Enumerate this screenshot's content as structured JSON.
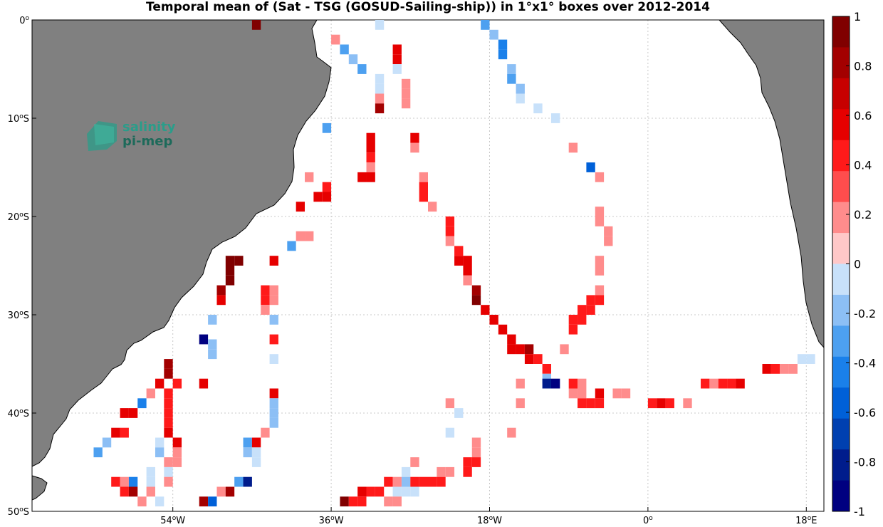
{
  "title": "Temporal mean of (Sat - TSG (GOSUD-Sailing-ship)) in 1°x1° boxes over 2012-2014",
  "logo_text": [
    "salinity",
    "pi-mep"
  ],
  "colors": {
    "land": "#808080",
    "ocean": "#ffffff",
    "logo": "#2a9d8a"
  },
  "chart_data": {
    "type": "heatmap",
    "title": "Temporal mean of (Sat - TSG (GOSUD-Sailing-ship)) in 1°x1° boxes over 2012-2014",
    "cell_size_deg": 1,
    "xlim": [
      -70,
      20
    ],
    "ylim": [
      -50,
      0
    ],
    "x_ticks": [
      {
        "value": -54,
        "deg": "54",
        "hem": "W"
      },
      {
        "value": -36,
        "deg": "36",
        "hem": "W"
      },
      {
        "value": -18,
        "deg": "18",
        "hem": "W"
      },
      {
        "value": 0,
        "deg": "0",
        "hem": ""
      },
      {
        "value": 18,
        "deg": "18",
        "hem": "E"
      }
    ],
    "y_ticks": [
      {
        "value": 0,
        "deg": "0",
        "hem": ""
      },
      {
        "value": -10,
        "deg": "10",
        "hem": "S"
      },
      {
        "value": -20,
        "deg": "20",
        "hem": "S"
      },
      {
        "value": -30,
        "deg": "30",
        "hem": "S"
      },
      {
        "value": -40,
        "deg": "40",
        "hem": "S"
      },
      {
        "value": -50,
        "deg": "50",
        "hem": "S"
      }
    ],
    "grid": true,
    "colorbar": {
      "range": [
        -1,
        1
      ],
      "levels": 16,
      "ticks": [
        "1",
        "0.8",
        "0.6",
        "0.4",
        "0.2",
        "0",
        "-0.2",
        "-0.4",
        "-0.6",
        "-0.8",
        "-1"
      ],
      "colors": [
        "#800000",
        "#a30000",
        "#c70000",
        "#e60000",
        "#ff1a1a",
        "#ff4d4d",
        "#ff8c8c",
        "#ffc8c8",
        "#c8e1fa",
        "#8cbff5",
        "#4da0f0",
        "#1a80ea",
        "#0060d8",
        "#0040b0",
        "#001c8c",
        "#000080"
      ]
    },
    "cells": [
      [
        -44.5,
        -0.5,
        1.0
      ],
      [
        -30.5,
        -0.5,
        -0.1
      ],
      [
        -18.5,
        -0.5,
        -0.3
      ],
      [
        -35.5,
        -2.0,
        0.2
      ],
      [
        -17.5,
        -1.5,
        -0.2
      ],
      [
        -34.5,
        -3.0,
        -0.3
      ],
      [
        -28.5,
        -3.0,
        0.6
      ],
      [
        -16.5,
        -2.5,
        -0.4
      ],
      [
        -16.5,
        -3.5,
        -0.4
      ],
      [
        -28.5,
        -4.0,
        0.6
      ],
      [
        -33.5,
        -4.0,
        -0.2
      ],
      [
        -32.5,
        -5.0,
        -0.3
      ],
      [
        -28.5,
        -5.0,
        -0.1
      ],
      [
        -15.5,
        -5.0,
        -0.2
      ],
      [
        -15.5,
        -6.0,
        -0.3
      ],
      [
        -30.5,
        -6.0,
        -0.1
      ],
      [
        -30.5,
        -7.0,
        -0.1
      ],
      [
        -27.5,
        -6.5,
        0.2
      ],
      [
        -14.5,
        -7.0,
        -0.2
      ],
      [
        -14.5,
        -8.0,
        -0.1
      ],
      [
        -27.5,
        -7.5,
        0.2
      ],
      [
        -27.5,
        -8.5,
        0.2
      ],
      [
        -30.5,
        -8.0,
        0.2
      ],
      [
        -30.5,
        -9.0,
        0.8
      ],
      [
        -12.5,
        -9.0,
        -0.1
      ],
      [
        -10.5,
        -10.0,
        -0.1
      ],
      [
        -36.5,
        -11.0,
        -0.3
      ],
      [
        -31.5,
        -12.0,
        0.6
      ],
      [
        -26.5,
        -12.0,
        0.6
      ],
      [
        -31.5,
        -13.0,
        0.6
      ],
      [
        -26.5,
        -13.0,
        0.2
      ],
      [
        -31.5,
        -14.0,
        0.4
      ],
      [
        -31.5,
        -15.0,
        0.2
      ],
      [
        -8.5,
        -13.0,
        0.2
      ],
      [
        -6.5,
        -15.0,
        -0.6
      ],
      [
        -32.5,
        -16.0,
        0.6
      ],
      [
        -31.5,
        -16.0,
        0.6
      ],
      [
        -25.5,
        -16.0,
        0.2
      ],
      [
        -5.5,
        -16.0,
        0.2
      ],
      [
        -38.5,
        -16.0,
        0.2
      ],
      [
        -25.5,
        -17.0,
        0.4
      ],
      [
        -36.5,
        -17.0,
        0.4
      ],
      [
        -37.5,
        -18.0,
        0.6
      ],
      [
        -36.5,
        -18.0,
        0.6
      ],
      [
        -25.5,
        -18.0,
        0.4
      ],
      [
        -24.5,
        -19.0,
        0.2
      ],
      [
        -39.5,
        -19.0,
        0.6
      ],
      [
        -5.5,
        -19.5,
        0.2
      ],
      [
        -5.5,
        -20.5,
        0.2
      ],
      [
        -22.5,
        -20.5,
        0.4
      ],
      [
        -22.5,
        -21.5,
        0.4
      ],
      [
        -4.5,
        -21.5,
        0.2
      ],
      [
        -4.5,
        -22.5,
        0.2
      ],
      [
        -38.5,
        -22.0,
        0.2
      ],
      [
        -39.5,
        -22.0,
        0.2
      ],
      [
        -22.5,
        -22.5,
        0.2
      ],
      [
        -40.5,
        -23.0,
        -0.3
      ],
      [
        -21.5,
        -23.5,
        0.4
      ],
      [
        -21.5,
        -24.5,
        0.6
      ],
      [
        -47.5,
        -24.5,
        1.0
      ],
      [
        -46.5,
        -24.5,
        1.0
      ],
      [
        -20.5,
        -24.5,
        0.6
      ],
      [
        -47.5,
        -25.5,
        1.0
      ],
      [
        -20.5,
        -25.5,
        0.6
      ],
      [
        -47.5,
        -26.5,
        1.0
      ],
      [
        -20.5,
        -26.5,
        0.2
      ],
      [
        -5.5,
        -24.5,
        0.2
      ],
      [
        -5.5,
        -25.5,
        0.2
      ],
      [
        -42.5,
        -24.5,
        0.6
      ],
      [
        -5.5,
        -27.5,
        0.2
      ],
      [
        -48.5,
        -27.5,
        0.8
      ],
      [
        -43.5,
        -27.5,
        0.4
      ],
      [
        -42.5,
        -27.5,
        0.2
      ],
      [
        -19.5,
        -27.5,
        0.8
      ],
      [
        -48.5,
        -28.5,
        0.6
      ],
      [
        -43.5,
        -28.5,
        0.4
      ],
      [
        -42.5,
        -28.5,
        0.2
      ],
      [
        -19.5,
        -28.5,
        1.0
      ],
      [
        -5.5,
        -28.5,
        0.4
      ],
      [
        -6.5,
        -28.5,
        0.4
      ],
      [
        -18.5,
        -29.5,
        0.6
      ],
      [
        -43.5,
        -29.5,
        0.2
      ],
      [
        -6.5,
        -29.5,
        0.4
      ],
      [
        -7.5,
        -29.5,
        0.4
      ],
      [
        -17.5,
        -30.5,
        0.6
      ],
      [
        -42.5,
        -30.5,
        -0.2
      ],
      [
        -49.5,
        -30.5,
        -0.2
      ],
      [
        -7.5,
        -30.5,
        0.4
      ],
      [
        -8.5,
        -30.5,
        0.4
      ],
      [
        -16.5,
        -31.5,
        0.6
      ],
      [
        -8.5,
        -31.5,
        0.4
      ],
      [
        -15.5,
        -32.5,
        0.6
      ],
      [
        -42.5,
        -32.5,
        0.4
      ],
      [
        -50.5,
        -32.5,
        -1.0
      ],
      [
        -49.5,
        -33.0,
        -0.2
      ],
      [
        -15.5,
        -33.5,
        0.6
      ],
      [
        -14.5,
        -33.5,
        0.6
      ],
      [
        -13.5,
        -33.5,
        0.8
      ],
      [
        -9.5,
        -33.5,
        0.2
      ],
      [
        -49.5,
        -34.0,
        -0.2
      ],
      [
        -13.5,
        -34.5,
        0.6
      ],
      [
        -12.5,
        -34.5,
        0.4
      ],
      [
        -42.5,
        -34.5,
        -0.1
      ],
      [
        -54.5,
        -35.0,
        0.8
      ],
      [
        -54.5,
        -36.0,
        0.8
      ],
      [
        -11.5,
        -35.5,
        0.4
      ],
      [
        -11.5,
        -36.5,
        -0.2
      ],
      [
        13.5,
        -35.5,
        0.6
      ],
      [
        14.5,
        -35.5,
        0.4
      ],
      [
        15.5,
        -35.5,
        0.2
      ],
      [
        16.5,
        -35.5,
        0.2
      ],
      [
        17.5,
        -34.5,
        -0.1
      ],
      [
        18.5,
        -34.5,
        -0.1
      ],
      [
        -55.5,
        -37.0,
        0.6
      ],
      [
        -53.5,
        -37.0,
        0.4
      ],
      [
        -50.5,
        -37.0,
        0.6
      ],
      [
        -14.5,
        -37.0,
        0.2
      ],
      [
        -11.5,
        -37.0,
        -0.8
      ],
      [
        -10.5,
        -37.0,
        -1.0
      ],
      [
        -8.5,
        -37.0,
        0.4
      ],
      [
        -7.5,
        -37.0,
        0.2
      ],
      [
        6.5,
        -37.0,
        0.4
      ],
      [
        7.5,
        -37.0,
        0.2
      ],
      [
        8.5,
        -37.0,
        0.4
      ],
      [
        9.5,
        -37.0,
        0.4
      ],
      [
        10.5,
        -37.0,
        0.6
      ],
      [
        -54.5,
        -38.0,
        0.4
      ],
      [
        -56.5,
        -38.0,
        0.2
      ],
      [
        -42.5,
        -38.0,
        0.6
      ],
      [
        -8.5,
        -38.0,
        0.2
      ],
      [
        -7.5,
        -38.0,
        0.2
      ],
      [
        -5.5,
        -38.0,
        0.6
      ],
      [
        -3.5,
        -38.0,
        0.2
      ],
      [
        -2.5,
        -38.0,
        0.2
      ],
      [
        -57.5,
        -39.0,
        -0.4
      ],
      [
        -54.5,
        -39.0,
        0.4
      ],
      [
        -42.5,
        -39.0,
        -0.2
      ],
      [
        -22.5,
        -39.0,
        0.2
      ],
      [
        -14.5,
        -39.0,
        0.2
      ],
      [
        -7.5,
        -39.0,
        0.4
      ],
      [
        -6.5,
        -39.0,
        0.4
      ],
      [
        -5.5,
        -39.0,
        0.4
      ],
      [
        0.5,
        -39.0,
        0.4
      ],
      [
        1.5,
        -39.0,
        0.6
      ],
      [
        2.5,
        -39.0,
        0.4
      ],
      [
        4.5,
        -39.0,
        0.2
      ],
      [
        -59.5,
        -40.0,
        0.6
      ],
      [
        -58.5,
        -40.0,
        0.6
      ],
      [
        -54.5,
        -40.0,
        0.4
      ],
      [
        -42.5,
        -40.0,
        -0.2
      ],
      [
        -21.5,
        -40.0,
        -0.1
      ],
      [
        -54.5,
        -41.0,
        0.4
      ],
      [
        -42.5,
        -41.0,
        -0.2
      ],
      [
        -54.5,
        -42.0,
        0.6
      ],
      [
        -60.5,
        -42.0,
        0.6
      ],
      [
        -59.5,
        -42.0,
        0.4
      ],
      [
        -43.5,
        -42.0,
        0.2
      ],
      [
        -22.5,
        -42.0,
        -0.1
      ],
      [
        -15.5,
        -42.0,
        0.2
      ],
      [
        -61.5,
        -43.0,
        -0.2
      ],
      [
        -55.5,
        -43.0,
        -0.1
      ],
      [
        -53.5,
        -43.0,
        0.6
      ],
      [
        -45.5,
        -43.0,
        -0.3
      ],
      [
        -44.5,
        -43.0,
        0.6
      ],
      [
        -19.5,
        -43.0,
        0.2
      ],
      [
        -62.5,
        -44.0,
        -0.3
      ],
      [
        -55.5,
        -44.0,
        -0.2
      ],
      [
        -53.5,
        -44.0,
        0.2
      ],
      [
        -45.5,
        -44.0,
        -0.2
      ],
      [
        -44.5,
        -44.0,
        -0.1
      ],
      [
        -19.5,
        -44.0,
        0.2
      ],
      [
        -54.5,
        -45.0,
        0.2
      ],
      [
        -53.5,
        -45.0,
        0.2
      ],
      [
        -44.5,
        -45.0,
        -0.1
      ],
      [
        -26.5,
        -45.0,
        0.2
      ],
      [
        -20.5,
        -45.0,
        0.4
      ],
      [
        -19.5,
        -45.0,
        0.4
      ],
      [
        -56.5,
        -46.0,
        -0.1
      ],
      [
        -54.5,
        -46.0,
        -0.1
      ],
      [
        -27.5,
        -46.0,
        -0.1
      ],
      [
        -23.5,
        -46.0,
        0.2
      ],
      [
        -22.5,
        -46.0,
        0.2
      ],
      [
        -20.5,
        -46.0,
        0.4
      ],
      [
        -56.5,
        -47.0,
        -0.1
      ],
      [
        -54.5,
        -47.0,
        0.2
      ],
      [
        -46.5,
        -47.0,
        -0.3
      ],
      [
        -45.5,
        -47.0,
        -0.8
      ],
      [
        -60.5,
        -47.0,
        0.4
      ],
      [
        -59.5,
        -47.0,
        0.2
      ],
      [
        -29.5,
        -47.0,
        0.4
      ],
      [
        -28.5,
        -47.0,
        0.2
      ],
      [
        -27.5,
        -47.0,
        -0.2
      ],
      [
        -26.5,
        -47.0,
        0.4
      ],
      [
        -25.5,
        -47.0,
        0.4
      ],
      [
        -24.5,
        -47.0,
        0.4
      ],
      [
        -23.5,
        -47.0,
        0.4
      ],
      [
        -58.5,
        -47.0,
        -0.4
      ],
      [
        -59.5,
        -48.0,
        0.4
      ],
      [
        -58.5,
        -48.0,
        0.8
      ],
      [
        -56.5,
        -48.0,
        0.2
      ],
      [
        -48.5,
        -48.0,
        0.2
      ],
      [
        -47.5,
        -48.0,
        0.8
      ],
      [
        -32.5,
        -48.0,
        0.6
      ],
      [
        -31.5,
        -48.0,
        0.4
      ],
      [
        -30.5,
        -48.0,
        0.4
      ],
      [
        -28.5,
        -48.0,
        -0.1
      ],
      [
        -27.5,
        -48.0,
        -0.1
      ],
      [
        -26.5,
        -48.0,
        -0.1
      ],
      [
        -57.5,
        -49.0,
        0.2
      ],
      [
        -55.5,
        -49.0,
        -0.1
      ],
      [
        -50.5,
        -49.0,
        0.8
      ],
      [
        -49.5,
        -49.0,
        -0.6
      ],
      [
        -34.5,
        -49.0,
        1.0
      ],
      [
        -33.5,
        -49.0,
        0.4
      ],
      [
        -32.5,
        -49.0,
        0.4
      ],
      [
        -29.5,
        -49.0,
        0.2
      ],
      [
        -28.5,
        -49.0,
        0.2
      ]
    ]
  }
}
